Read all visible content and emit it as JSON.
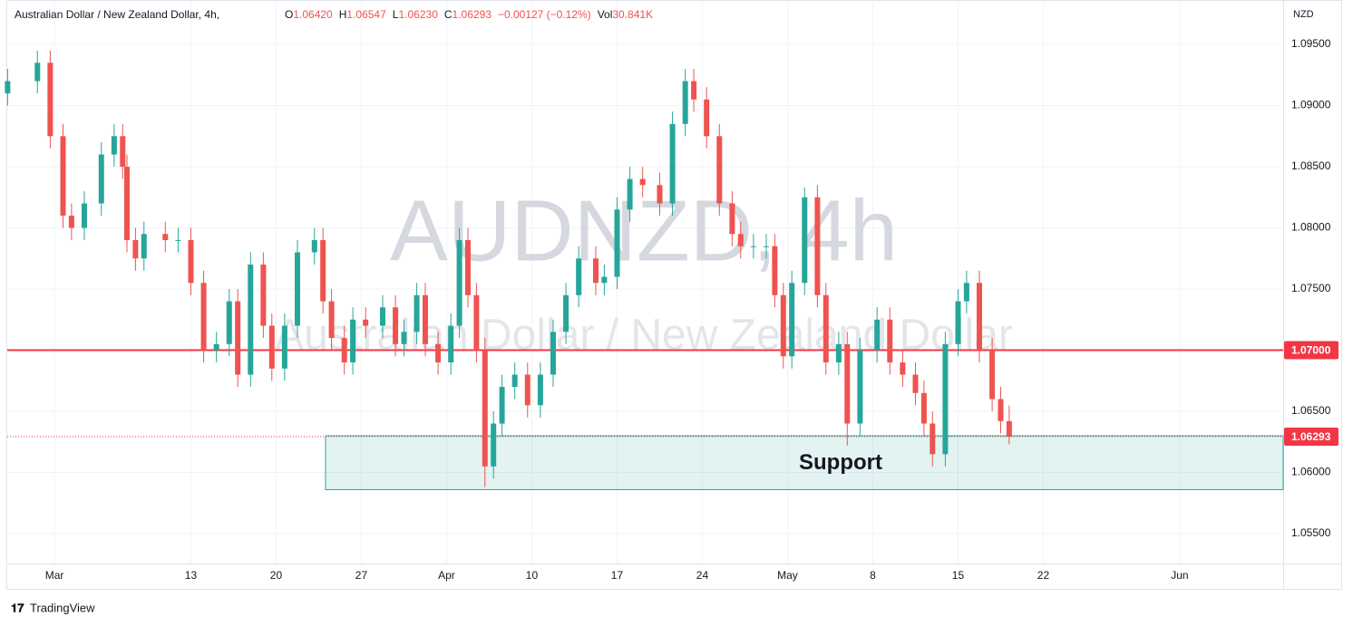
{
  "header": {
    "symbol": "Australian Dollar / New Zealand Dollar, 4h,",
    "items": [
      {
        "label": "O",
        "value": "1.06420"
      },
      {
        "label": "H",
        "value": "1.06547"
      },
      {
        "label": "L",
        "value": "1.06230"
      },
      {
        "label": "C",
        "value": "1.06293"
      }
    ],
    "change": "−0.00127 (−0.12%)",
    "volume": {
      "label": "Vol",
      "value": "30.841K"
    }
  },
  "watermark": {
    "symbol": "AUDNZD, 4h",
    "name": "Australian Dollar / New Zealand Dollar"
  },
  "footer": {
    "brand": "TradingView"
  },
  "chart_data": {
    "type": "candlestick",
    "currency": "NZD",
    "up_color": "#26a69a",
    "down_color": "#ef5350",
    "grid": true,
    "xlim": [
      -2.77,
      72.07
    ],
    "ylim": [
      1.05256,
      1.09804
    ],
    "xticks": [
      {
        "value": 0,
        "label": "Mar"
      },
      {
        "value": 8,
        "label": "13"
      },
      {
        "value": 13,
        "label": "20"
      },
      {
        "value": 18,
        "label": "27"
      },
      {
        "value": 23,
        "label": "Apr"
      },
      {
        "value": 28,
        "label": "10"
      },
      {
        "value": 33,
        "label": "17"
      },
      {
        "value": 38,
        "label": "24"
      },
      {
        "value": 43,
        "label": "May"
      },
      {
        "value": 48,
        "label": "8"
      },
      {
        "value": 53,
        "label": "15"
      },
      {
        "value": 58,
        "label": "22"
      },
      {
        "value": 66,
        "label": "Jun"
      }
    ],
    "yticks": [
      {
        "value": 1.055,
        "label": "1.05500"
      },
      {
        "value": 1.06,
        "label": "1.06000"
      },
      {
        "value": 1.065,
        "label": "1.06500"
      },
      {
        "value": 1.07,
        "label": "1.07000"
      },
      {
        "value": 1.075,
        "label": "1.07500"
      },
      {
        "value": 1.08,
        "label": "1.08000"
      },
      {
        "value": 1.085,
        "label": "1.08500"
      },
      {
        "value": 1.09,
        "label": "1.09000"
      },
      {
        "value": 1.095,
        "label": "1.09500"
      }
    ],
    "x": [
      -2.75,
      -1,
      -0.25,
      0.5,
      1,
      1.75,
      2.75,
      3.5,
      4,
      4.25,
      4.75,
      5.25,
      6.5,
      7.25,
      8,
      8.75,
      9.5,
      10.25,
      10.75,
      11.5,
      12.25,
      12.75,
      13.5,
      14.25,
      15.25,
      15.75,
      16.25,
      17,
      17.5,
      18.25,
      19.25,
      20,
      20.5,
      21.25,
      21.75,
      22.5,
      23.25,
      23.75,
      24.25,
      24.75,
      25.25,
      25.75,
      26.25,
      27,
      27.75,
      28.5,
      29.25,
      30,
      30.75,
      31.75,
      32.25,
      33,
      33.75,
      34.5,
      35.5,
      36.25,
      37,
      37.5,
      38.25,
      39,
      39.75,
      40.25,
      41,
      41.75,
      42.25,
      42.75,
      43.25,
      44,
      44.75,
      45.25,
      46,
      46.5,
      47.25,
      48.25,
      49,
      49.75,
      50.5,
      51,
      51.5,
      52.25,
      53,
      53.5,
      54.25,
      55,
      55.5,
      56
    ],
    "open": [
      1.091,
      1.092,
      1.0935,
      1.0875,
      1.081,
      1.08,
      1.082,
      1.086,
      1.0875,
      1.085,
      1.079,
      1.0775,
      1.0795,
      1.079,
      1.079,
      1.0755,
      1.07,
      1.0705,
      1.074,
      1.068,
      1.077,
      1.072,
      1.0685,
      1.072,
      1.078,
      1.079,
      1.074,
      1.071,
      1.069,
      1.0725,
      1.072,
      1.0735,
      1.0705,
      1.0715,
      1.0745,
      1.0705,
      1.069,
      1.072,
      1.079,
      1.0745,
      1.07,
      1.0605,
      1.064,
      1.067,
      1.068,
      1.0655,
      1.068,
      1.0715,
      1.0745,
      1.0775,
      1.0755,
      1.076,
      1.0815,
      1.084,
      1.0835,
      1.082,
      1.0885,
      1.092,
      1.0905,
      1.0875,
      1.082,
      1.0795,
      1.0785,
      1.0785,
      1.0785,
      1.0745,
      1.0695,
      1.0755,
      1.0825,
      1.0745,
      1.069,
      1.0705,
      1.064,
      1.07,
      1.0725,
      1.069,
      1.068,
      1.0665,
      1.064,
      1.0615,
      1.0705,
      1.074,
      1.0755,
      1.07,
      1.066,
      1.0642
    ],
    "high": [
      1.093,
      1.0945,
      1.0945,
      1.0885,
      1.082,
      1.083,
      1.087,
      1.0885,
      1.0885,
      1.086,
      1.08,
      1.0805,
      1.0805,
      1.08,
      1.08,
      1.0765,
      1.0715,
      1.075,
      1.075,
      1.078,
      1.078,
      1.073,
      1.073,
      1.079,
      1.08,
      1.08,
      1.075,
      1.072,
      1.0735,
      1.0735,
      1.0745,
      1.0745,
      1.0725,
      1.0755,
      1.0755,
      1.0715,
      1.073,
      1.08,
      1.08,
      1.0755,
      1.071,
      1.065,
      1.068,
      1.069,
      1.069,
      1.069,
      1.0725,
      1.0755,
      1.0785,
      1.0785,
      1.077,
      1.0825,
      1.085,
      1.085,
      1.0845,
      1.0895,
      1.093,
      1.093,
      1.0915,
      1.0885,
      1.083,
      1.0805,
      1.0795,
      1.0795,
      1.0795,
      1.0755,
      1.0765,
      1.0833,
      1.0835,
      1.0755,
      1.0715,
      1.0715,
      1.071,
      1.0735,
      1.0735,
      1.07,
      1.069,
      1.0675,
      1.065,
      1.0715,
      1.075,
      1.0765,
      1.0765,
      1.071,
      1.067,
      1.06547
    ],
    "low": [
      1.09,
      1.091,
      1.0865,
      1.08,
      1.079,
      1.079,
      1.081,
      1.085,
      1.084,
      1.078,
      1.0765,
      1.0765,
      1.078,
      1.078,
      1.0745,
      1.069,
      1.069,
      1.0695,
      1.067,
      1.067,
      1.071,
      1.0675,
      1.0675,
      1.071,
      1.077,
      1.073,
      1.07,
      1.068,
      1.068,
      1.071,
      1.071,
      1.0695,
      1.0695,
      1.0705,
      1.0695,
      1.068,
      1.068,
      1.071,
      1.0735,
      1.069,
      1.0588,
      1.0595,
      1.063,
      1.066,
      1.0645,
      1.0645,
      1.067,
      1.0705,
      1.0735,
      1.0745,
      1.0745,
      1.075,
      1.0805,
      1.0825,
      1.081,
      1.081,
      1.0875,
      1.0895,
      1.0865,
      1.081,
      1.0785,
      1.0775,
      1.0775,
      1.0775,
      1.0735,
      1.0685,
      1.0685,
      1.0745,
      1.0735,
      1.068,
      1.068,
      1.0622,
      1.063,
      1.069,
      1.068,
      1.067,
      1.0655,
      1.063,
      1.0605,
      1.0605,
      1.0695,
      1.073,
      1.069,
      1.065,
      1.0632,
      1.0623
    ],
    "close": [
      1.092,
      1.0935,
      1.0875,
      1.081,
      1.08,
      1.082,
      1.086,
      1.0875,
      1.085,
      1.079,
      1.0775,
      1.0795,
      1.079,
      1.079,
      1.0755,
      1.07,
      1.0705,
      1.074,
      1.068,
      1.077,
      1.072,
      1.0685,
      1.072,
      1.078,
      1.079,
      1.074,
      1.071,
      1.069,
      1.0725,
      1.072,
      1.0735,
      1.0705,
      1.0715,
      1.0745,
      1.0705,
      1.069,
      1.072,
      1.079,
      1.0745,
      1.07,
      1.0605,
      1.064,
      1.067,
      1.068,
      1.0655,
      1.068,
      1.0715,
      1.0745,
      1.0775,
      1.0755,
      1.076,
      1.0815,
      1.084,
      1.0835,
      1.082,
      1.0885,
      1.092,
      1.0905,
      1.0875,
      1.082,
      1.0795,
      1.0785,
      1.0785,
      1.0785,
      1.0745,
      1.0695,
      1.0755,
      1.0825,
      1.0745,
      1.069,
      1.0705,
      1.064,
      1.07,
      1.0725,
      1.069,
      1.068,
      1.0665,
      1.064,
      1.0615,
      1.0705,
      1.074,
      1.0755,
      1.07,
      1.066,
      1.0642,
      1.06293
    ],
    "hline": {
      "value": 1.07,
      "label": "1.07000",
      "color": "#f23645"
    },
    "last_price": {
      "value": 1.06293,
      "label": "1.06293",
      "color": "#f23645"
    },
    "zone": {
      "label": "Support",
      "from": 1.0586,
      "to": 1.063,
      "x_start": 15.9,
      "color": "#26a69a"
    }
  }
}
